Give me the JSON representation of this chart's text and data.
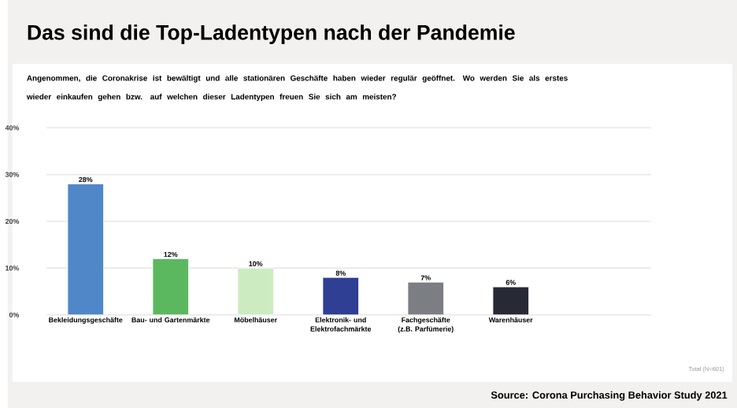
{
  "chart_data": {
    "type": "bar",
    "title": "Das sind die Top-Ladentypen nach der Pandemie",
    "subtitle": "Angenommen, die Coronakrise ist bewältigt und alle stationären Geschäfte haben wieder regulär geöffnet. Wo werden Sie als erstes wieder einkaufen gehen bzw. auf welchen dieser Ladentypen freuen Sie sich am meisten?",
    "categories": [
      "Bekleidungsgeschäfte",
      "Bau- und Gartenmärkte",
      "Möbelhäuser",
      "Elektronik- und Elektrofachmärkte",
      "Fachgeschäfte (z.B. Parfümerie)",
      "Warenhäuser"
    ],
    "values": [
      28,
      12,
      10,
      8,
      7,
      6
    ],
    "value_labels": [
      "28%",
      "12%",
      "10%",
      "8%",
      "7%",
      "6%"
    ],
    "colors": [
      "#5087c8",
      "#5cb85f",
      "#cdebc0",
      "#2f3f94",
      "#7b7f84",
      "#272a35"
    ],
    "ylim": [
      0,
      40
    ],
    "yticks": [
      {
        "value": 0,
        "label": "0%"
      },
      {
        "value": 10,
        "label": "10%"
      },
      {
        "value": 20,
        "label": "20%"
      },
      {
        "value": 30,
        "label": "30%"
      },
      {
        "value": 40,
        "label": "40%"
      }
    ],
    "grid": "y",
    "annotations": [
      "Total (N=601)",
      "Source: Corona Purchasing Behavior Study 2021"
    ]
  }
}
